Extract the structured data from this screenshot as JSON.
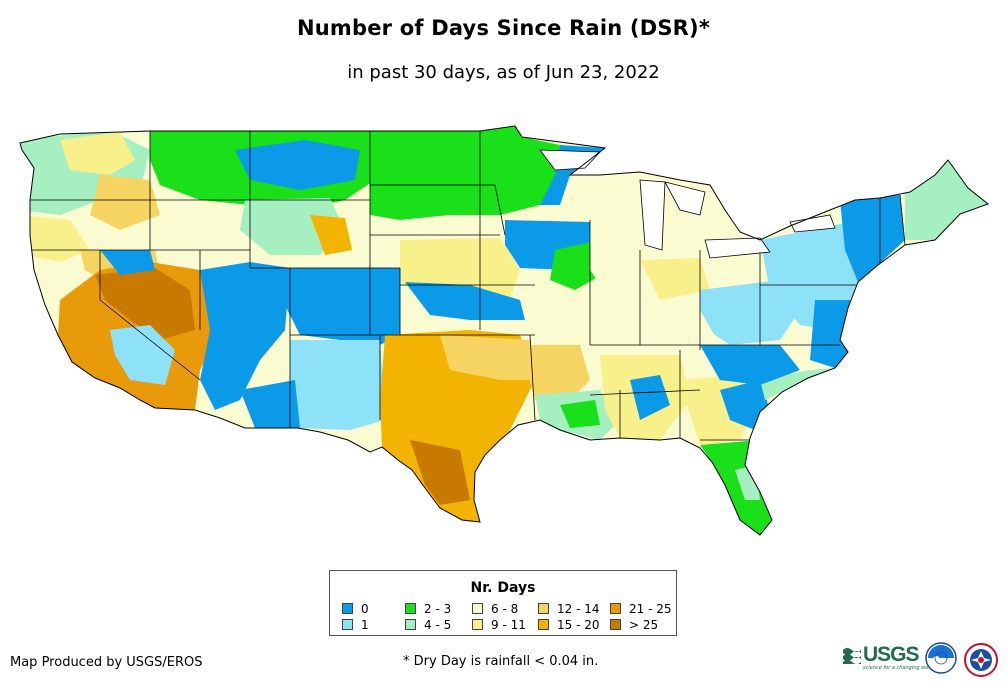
{
  "header": {
    "title": "Number of Days Since Rain (DSR)*",
    "subtitle": "in past 30 days, as of Jun 23, 2022"
  },
  "legend": {
    "title": "Nr. Days",
    "items": [
      {
        "label": "0",
        "color": "#0a9ae8"
      },
      {
        "label": "1",
        "color": "#8ee2f8"
      },
      {
        "label": "2 - 3",
        "color": "#19e019"
      },
      {
        "label": "4 - 5",
        "color": "#a6efc0"
      },
      {
        "label": "6 - 8",
        "color": "#fbfbd2"
      },
      {
        "label": "9 - 11",
        "color": "#f8f08a"
      },
      {
        "label": "12 - 14",
        "color": "#f5d462"
      },
      {
        "label": "15 - 20",
        "color": "#f2b400"
      },
      {
        "label": "21 - 25",
        "color": "#e99a0a"
      },
      {
        "label": "> 25",
        "color": "#c87a00"
      }
    ]
  },
  "footer": {
    "credit": "Map Produced by USGS/EROS",
    "footnote": "* Dry Day is rainfall < 0.04 in."
  },
  "logos": {
    "usgs": {
      "text": "USGS",
      "tagline": "science for a changing world",
      "color": "#1f6b4e"
    },
    "noaa": {
      "icon": "noaa-logo-icon"
    },
    "nws": {
      "icon": "nws-logo-icon"
    }
  },
  "map": {
    "region": "Contiguous United States",
    "water_color": "#ffffff",
    "border_color": "#000000"
  }
}
